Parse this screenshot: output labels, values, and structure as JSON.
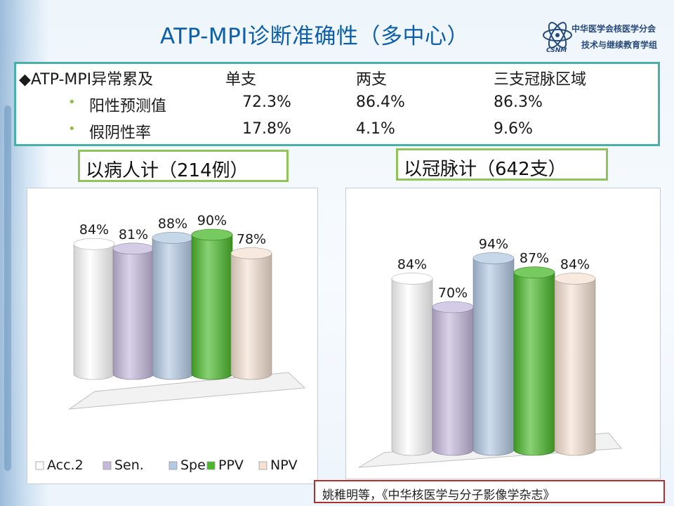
{
  "slide": {
    "title": "ATP-MPI诊断准确性（多中心）",
    "logo": {
      "line1": "中华医学会核医学分会",
      "line2": "技术与继续教育学组",
      "abbr": "CSNM"
    }
  },
  "summary_table": {
    "header": {
      "label": "◆ATP-MPI异常累及",
      "cols": [
        "单支",
        "两支",
        "三支冠脉区域"
      ]
    },
    "rows": [
      {
        "bullet": "•",
        "label": "阳性预测值",
        "values": [
          "72.3%",
          "86.4%",
          "86.3%"
        ]
      },
      {
        "bullet": "•",
        "label": "假阴性率",
        "values": [
          "17.8%",
          "4.1%",
          "9.6%"
        ]
      }
    ]
  },
  "tags": {
    "patients": {
      "prefix": "以病人计（",
      "number": "214",
      "suffix": "例）"
    },
    "vessels": {
      "prefix": "以冠脉计（",
      "number": "642",
      "suffix": "支）"
    }
  },
  "legend_colors": {
    "Acc.2": "#ffffff",
    "Sen.": "#c6b9dd",
    "Spe.": "#b4c9e3",
    "PPV": "#4ab82a",
    "NPV": "#f6e2d3"
  },
  "chart_data": [
    {
      "type": "bar",
      "style": "3d-cylinder",
      "categories": [
        "Acc.2",
        "Sen.",
        "Spe.",
        "PPV",
        "NPV"
      ],
      "values": [
        84,
        81,
        88,
        90,
        78
      ],
      "labels": [
        "84%",
        "81%",
        "88%",
        "90%",
        "78%"
      ],
      "ylim": [
        0,
        100
      ],
      "legend": {
        "entries": [
          "Acc.2",
          "Sen.",
          "Spe.",
          "PPV",
          "NPV"
        ],
        "position": "bottom"
      },
      "grid": false
    },
    {
      "type": "bar",
      "style": "3d-cylinder",
      "categories": [
        "Acc.2",
        "Sen.",
        "Spe.",
        "PPV",
        "NPV"
      ],
      "values": [
        84,
        70,
        94,
        87,
        84
      ],
      "labels": [
        "84%",
        "70%",
        "94%",
        "87%",
        "84%"
      ],
      "ylim": [
        0,
        100
      ],
      "legend": {
        "entries": [],
        "position": "none"
      },
      "grid": false
    }
  ],
  "citation": "姚稚明等，《中华核医学与分子影像学杂志》"
}
